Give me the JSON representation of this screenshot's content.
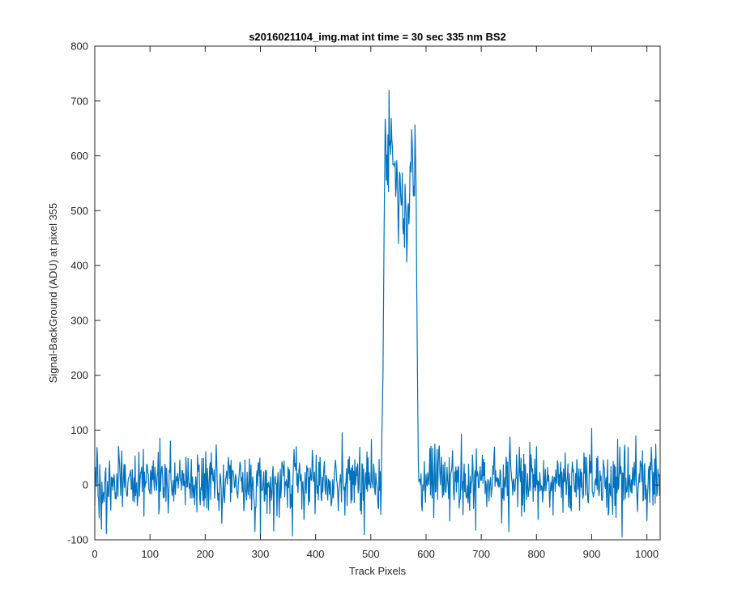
{
  "chart_data": {
    "type": "line",
    "title": "s2016021104_img.mat int time = 30 sec  335 nm BS2",
    "xlabel": "Track Pixels",
    "ylabel": "Signal-BackGround (ADU) at pixel 355",
    "xlim": [
      0,
      1024
    ],
    "ylim": [
      -100,
      800
    ],
    "xticks": [
      0,
      100,
      200,
      300,
      400,
      500,
      600,
      700,
      800,
      900,
      1000
    ],
    "yticks": [
      -100,
      0,
      100,
      200,
      300,
      400,
      500,
      600,
      700,
      800
    ],
    "grid": false,
    "series": [
      {
        "color": "#0072BD",
        "baseline_noise": {
          "x_start": 0,
          "x_end": 1024,
          "mean": 5,
          "std": 30,
          "step": 1
        },
        "x": [
          0,
          3,
          8,
          12,
          20,
          40,
          75,
          100,
          118,
          150,
          200,
          230,
          260,
          290,
          300,
          330,
          365,
          390,
          420,
          448,
          470,
          500,
          512,
          516,
          519,
          522,
          525,
          526,
          528,
          530,
          532,
          533,
          535,
          538,
          540,
          543,
          545,
          548,
          550,
          552,
          555,
          557,
          560,
          562,
          565,
          567,
          570,
          572,
          574,
          576,
          578,
          580,
          582,
          584,
          586,
          590,
          600,
          620,
          650,
          700,
          750,
          800,
          850,
          900,
          930,
          955,
          970,
          1000,
          1010,
          1024
        ],
        "y": [
          10,
          30,
          -60,
          -80,
          20,
          50,
          -40,
          15,
          85,
          -30,
          40,
          -70,
          60,
          -85,
          -95,
          45,
          70,
          -20,
          30,
          95,
          -10,
          20,
          55,
          10,
          40,
          200,
          600,
          680,
          580,
          620,
          560,
          713,
          600,
          640,
          560,
          600,
          520,
          580,
          430,
          560,
          480,
          520,
          460,
          500,
          450,
          530,
          470,
          600,
          640,
          560,
          580,
          630,
          550,
          250,
          40,
          -20,
          20,
          65,
          -30,
          35,
          -85,
          70,
          -40,
          103,
          -55,
          -95,
          40,
          -65,
          50,
          -30
        ]
      }
    ]
  }
}
